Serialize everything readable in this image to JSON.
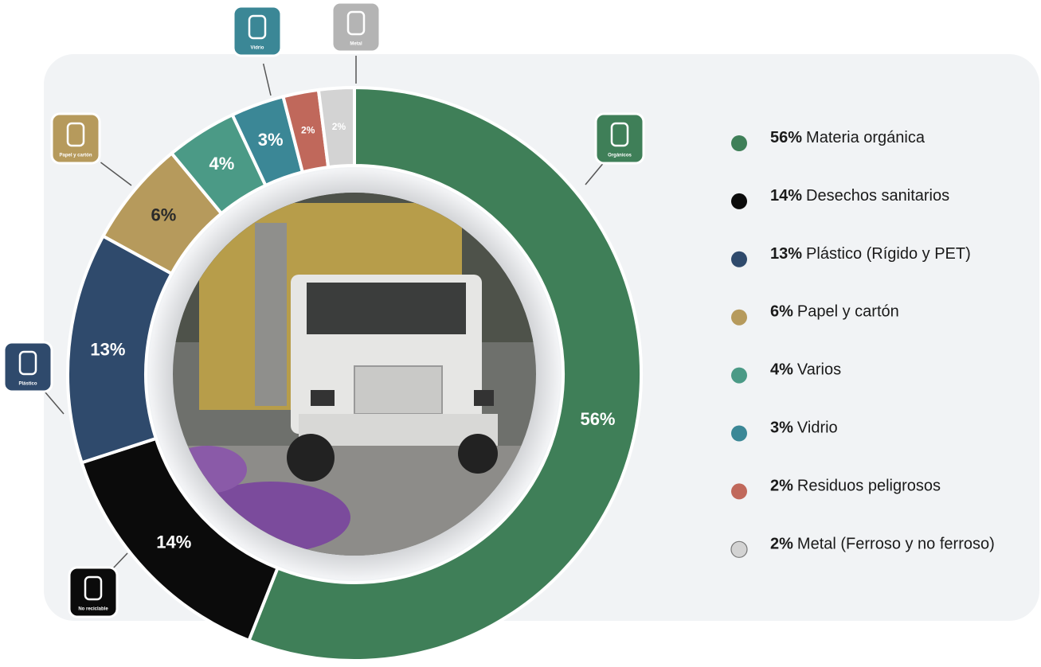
{
  "chart_data": {
    "type": "donut",
    "categories": [
      "Materia orgánica",
      "Desechos sanitarios",
      "Plástico (Rígido y PET)",
      "Papel y cartón",
      "Varios",
      "Vidrio",
      "Residuos peligrosos",
      "Metal (Ferroso y no ferroso)"
    ],
    "values": [
      56,
      14,
      13,
      6,
      4,
      3,
      2,
      2
    ],
    "value_labels": [
      "56%",
      "14%",
      "13%",
      "6%",
      "4%",
      "3%",
      "2%",
      "2%"
    ],
    "colors": [
      "#3f7f58",
      "#0b0b0b",
      "#2f4a6c",
      "#b69a5c",
      "#4b9a86",
      "#3b8796",
      "#c0685b",
      "#d3d3d3"
    ],
    "icon_labels": [
      "Orgánicos",
      "No reciclable",
      "Plástico",
      "Papel y cartón",
      null,
      "Vidrio",
      null,
      "Metal"
    ]
  }
}
